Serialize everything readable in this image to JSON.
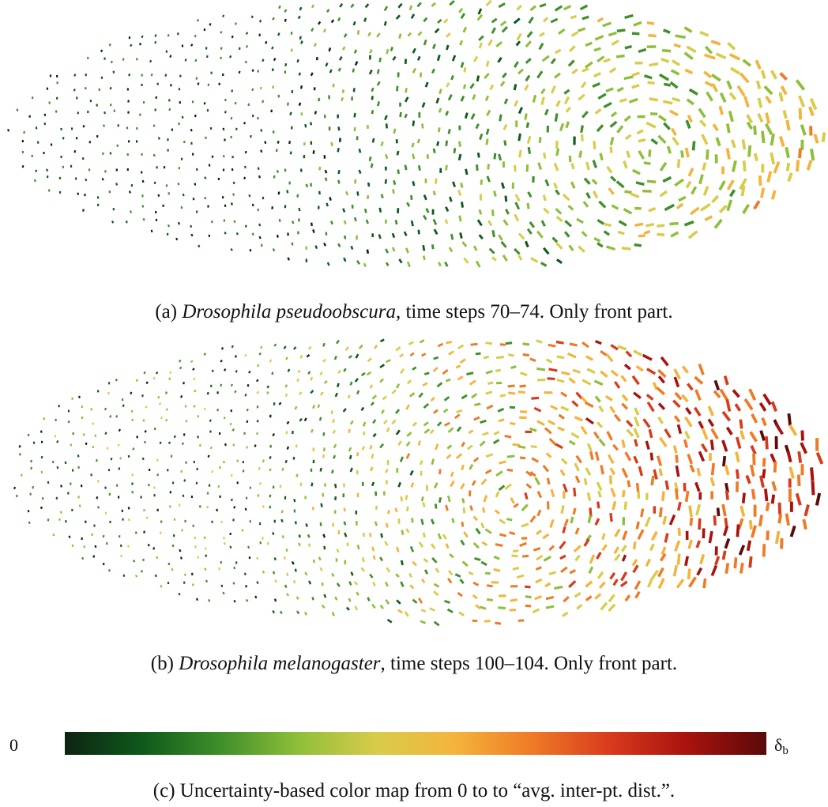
{
  "colormap": {
    "stops": [
      "#0d2412",
      "#0f5a1c",
      "#3f8f2a",
      "#8fbf3a",
      "#d8cc4a",
      "#f4b43c",
      "#ef7a26",
      "#d83a1c",
      "#a8120e",
      "#5a0a0a"
    ],
    "min_label": "0",
    "max_label": "δ",
    "max_label_sub": "b"
  },
  "panels": {
    "a": {
      "caption_prefix": "(a) ",
      "caption_species": "Drosophila pseudoobscura",
      "caption_rest": ", time steps 70–74. Only front part."
    },
    "b": {
      "caption_prefix": "(b) ",
      "caption_species": "Drosophila melanogaster",
      "caption_rest": ", time steps 100–104. Only front part."
    },
    "c": {
      "caption": "(c) Uncertainty-based color map from 0 to to “avg. inter-pt. dist.”."
    }
  }
}
